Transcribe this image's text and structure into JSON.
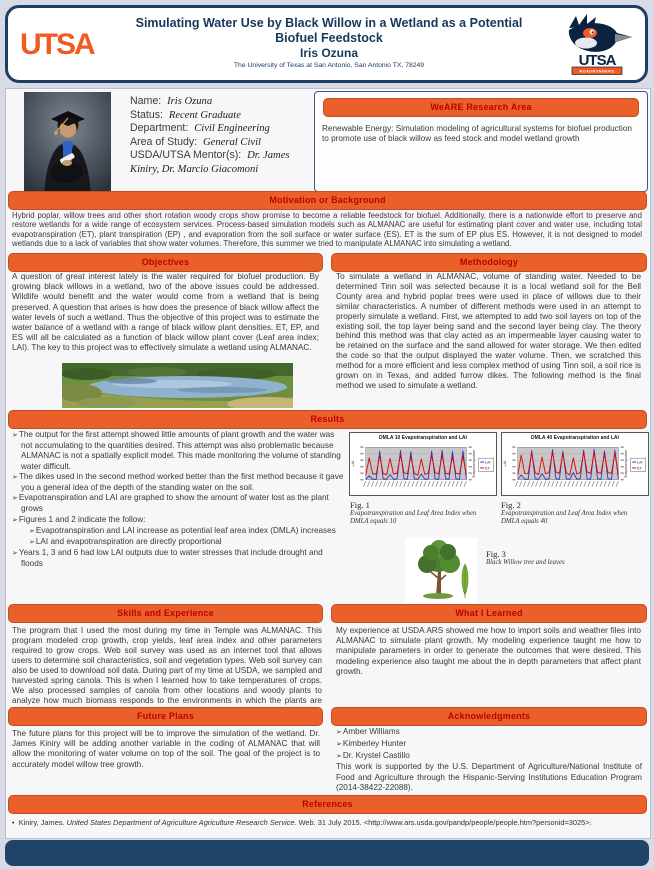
{
  "header": {
    "wordmark": "UTSA",
    "title_line1": "Simulating Water Use by Black Willow in a Wetland as a Potential",
    "title_line2": "Biofuel Feedstock",
    "author": "Iris Ozuna",
    "affiliation": "The University of Texas at San Antonio, San Antonio TX, 78249",
    "roadrunner_wordmark": "UTSA",
    "roadrunner_banner": "ROADRUNNERS"
  },
  "profile": {
    "fields": [
      {
        "label": "Name:",
        "value": "Iris Ozuna"
      },
      {
        "label": "Status:",
        "value": "Recent Graduate"
      },
      {
        "label": "Department:",
        "value": "Civil Engineering"
      },
      {
        "label": "Area of Study:",
        "value": "General Civil"
      },
      {
        "label": "USDA/UTSA Mentor(s):",
        "value": "Dr. James Kiniry, Dr. Marcio Giacomoni"
      }
    ]
  },
  "research_area": {
    "heading": "WeARE Research Area",
    "text": "Renewable Energy: Simulation modeling of agricultural systems for biofuel production to promote use of black willow as feed stock and model wetland growth"
  },
  "motivation": {
    "heading": "Motivation or Background",
    "text": "Hybrid poplar, willow trees and other short rotation woody crops show promise to become a reliable feedstock for biofuel. Additionally, there is a nationwide effort to preserve and restore wetlands for a wide range of ecosystem services. Process-based simulation models such as ALMANAC are useful for estimating plant cover and water use, including total evapotranspiration (ET), plant transpiration (EP) , and evaporation from the soil surface or water surface (ES). ET is the sum of EP plus ES. However, it is not designed to model wetlands due to a lack of variables that show water volumes. Therefore, this summer we tried to manipulate ALMANAC into simulating a wetland."
  },
  "objectives": {
    "heading": "Objectives",
    "text": "A question of great interest lately is the water required for biofuel production. By growing black willows in a wetland, two of the above issues could be addressed. Wildlife would benefit and the water would come from a wetland that is being preserved.  A question that arises is how does the presence of black willow affect the water levels of such a  wetland. Thus the objective of this project was to estimate the water balance of a wetland with a range of black willow plant densities.  ET, EP, and ES will all be calculated as a function of black willow plant cover (Leaf area index; LAI). The key to this project was to effectively simulate a wetland using ALMANAC."
  },
  "methodology": {
    "heading": "Methodology",
    "text": "To simulate a wetland in ALMANAC, volume of standing water. Needed to be determined Tinn soil was selected because it is a local wetland soil for the Bell County area and hybrid poplar trees were used in place of willows due to their similar characteristics. A number of different methods were used in an attempt to properly simulate a wetland. First, we attempted to add two soil layers on top of the existing soil, the top layer being sand and the second layer being clay. The theory behind this method was that clay acted as an impermeable layer causing water to be retained on the surface and the sand allowed for water storage. We then edited the code so that the output displayed the water volume. Then, we scratched this method for a more efficient and less complex method of using Tinn soil, a soil rice is grown on in Texas, and added furrow dikes. The following method is the final method we used to simulate a wetland."
  },
  "results": {
    "heading": "Results",
    "items": [
      {
        "text": "The output for the first attempt showed little amounts of plant growth and the water was not accumulating to the quantities desired. This attempt was also problematic because ALMANAC is not a spatially explicit model. This made monitoring the volume of standing water difficult."
      },
      {
        "text": "The dikes used in the second method worked better than the first method because it gave you a general idea of the depth of the standing water on the soil."
      },
      {
        "text": "Evapotranspiration and LAI are graphed to show the amount of water lost as the plant grows"
      },
      {
        "text": "Figures 1 and 2 indicate the follow:"
      },
      {
        "level": 2,
        "text": "Evapotranspiration and LAI increase as potential leaf area index (DMLA) increases"
      },
      {
        "level": 2,
        "text": "LAI and evapotranspiration are directly proportional"
      },
      {
        "text": "Years 1, 3 and 6 had low LAI outputs due to water stresses that include drought and floods"
      }
    ]
  },
  "figures": {
    "fig1": {
      "label": "Fig. 1",
      "caption": "Evapotranspiration and Leaf Area Index when DMLA equals 10"
    },
    "fig2": {
      "label": "Fig. 2",
      "caption": "Evapotranspiration and Leaf Area Index when DMLA equals 40"
    },
    "fig3": {
      "label": "Fig. 3",
      "caption": "Black Willow tree and leaves"
    }
  },
  "skills": {
    "heading": "Skills and Experience",
    "text": "The program that I used the most during my time in Temple was ALMANAC. This program modeled crop growth, crop yields, leaf area index and other parameters required to grow crops. Web soil survey was used as an internet  tool that allows users to determine soil characteristics, soil and vegetation types. Web soil survey can also be used to download soil data. During part of my time at USDA, we sampled and harvested spring  canola. This is when I learned how to take temperatures of crops. We also processed samples of canola from other locations and woody plants to analyze how much biomass responds to the environments in which the plants are grown."
  },
  "learned": {
    "heading": "What I Learned",
    "text": "My experience at USDA ARS showed me how to import soils and weather files into ALMANAC to simulate plant growth. My modeling experience taught me how to manipulate parameters in order to generate the outcomes that were desired. This modeling experience also taught me about the in depth parameters that affect plant growth."
  },
  "future": {
    "heading": "Future Plans",
    "text": "The future plans for this project will be to improve the simulation of the wetland. Dr. James Kiniry will be adding another variable in the coding of ALMANAC that will allow the monitoring of water volume on top of the soil. The goal of the project is to accurately model willow tree growth."
  },
  "acknowledgments": {
    "heading": "Acknowledgments",
    "people": [
      "Amber Williams",
      "Kimberley Hunter",
      "Dr. Krystel Castillo"
    ],
    "support": "This work is supported by the U.S. Department of Agriculture/National Institute of Food and Agriculture through the Hispanic-Serving Institutions Education Program (2014-38422-22088)."
  },
  "references": {
    "heading": "References",
    "entry_prefix": "Kiniry, James. ",
    "entry_italic": "United States Department of Agriculture Agriculture Research Service.",
    "entry_suffix": " Web. 31 July 2015. <http://www.ars.usda.gov/pandp/people/people.htm?personid=3025>."
  },
  "colors": {
    "accent_orange": "#EA602B",
    "bar_text_red": "#BE0000",
    "navy": "#17375D",
    "footer_navy": "#1F4467"
  },
  "chart_data": [
    {
      "type": "line",
      "title": "DMLA 10 Evapotranspiration and LAI",
      "ylabel_left": "LAI",
      "ylabel_right": "Evapotranspiration",
      "x": "10 annual cycles (rotated date tick labels, illegible at this size)",
      "ylim": [
        0,
        100
      ],
      "value_scale": "relative 0-100, estimated from pixel heights",
      "legend": [
        "LAI",
        "ET"
      ],
      "series": [
        {
          "name": "LAI",
          "color": "#3333CC",
          "values": [
            2,
            12,
            2,
            2,
            88,
            3,
            2,
            16,
            2,
            3,
            90,
            3,
            2,
            86,
            3,
            2,
            18,
            2,
            3,
            88,
            3,
            2,
            91,
            3,
            2,
            87,
            3,
            2,
            89,
            2
          ]
        },
        {
          "name": "ET",
          "color": "#E00000",
          "values": [
            14,
            68,
            18,
            18,
            74,
            20,
            15,
            66,
            18,
            20,
            76,
            22,
            18,
            72,
            20,
            14,
            64,
            17,
            20,
            75,
            22,
            18,
            76,
            20,
            18,
            71,
            20,
            18,
            73,
            15
          ]
        }
      ]
    },
    {
      "type": "line",
      "title": "DMLA 40 Evapotranspiration and LAI",
      "ylabel_left": "LAI",
      "ylabel_right": "Evapotranspiration",
      "x": "10 annual cycles (rotated date tick labels, illegible at this size)",
      "ylim": [
        0,
        100
      ],
      "value_scale": "relative 0-100, estimated from pixel heights",
      "legend": [
        "LAI",
        "ET"
      ],
      "series": [
        {
          "name": "LAI",
          "color": "#3333CC",
          "values": [
            2,
            15,
            2,
            2,
            90,
            3,
            2,
            19,
            2,
            3,
            93,
            3,
            2,
            88,
            3,
            2,
            22,
            2,
            3,
            91,
            3,
            2,
            94,
            3,
            2,
            89,
            3,
            2,
            91,
            2
          ]
        },
        {
          "name": "ET",
          "color": "#E00000",
          "values": [
            15,
            76,
            20,
            20,
            84,
            22,
            16,
            70,
            19,
            22,
            87,
            24,
            20,
            81,
            22,
            15,
            68,
            18,
            22,
            85,
            24,
            20,
            86,
            22,
            20,
            79,
            22,
            20,
            83,
            15
          ]
        }
      ]
    }
  ]
}
